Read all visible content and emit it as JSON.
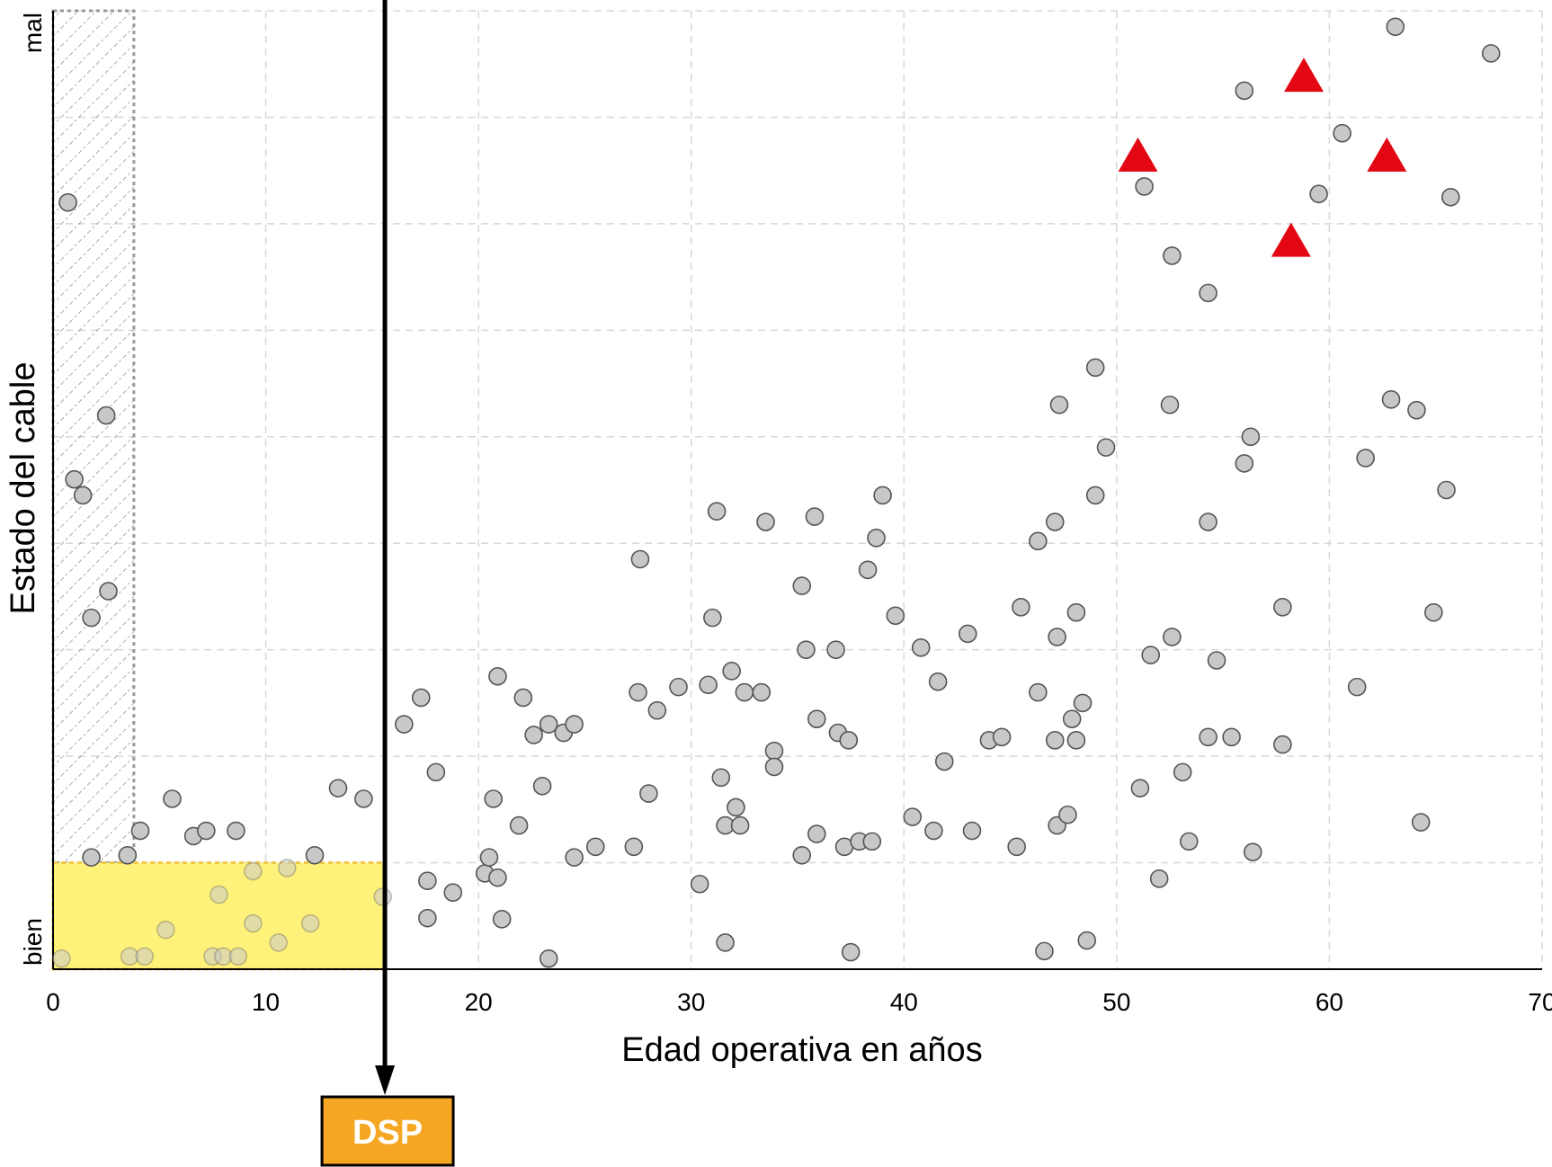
{
  "chart_data": {
    "type": "scatter",
    "title": "",
    "xlabel": "Edad operativa en años",
    "ylabel": "Estado del cable",
    "xlim": [
      0,
      70
    ],
    "ylim": [
      0,
      9
    ],
    "x_ticks": [
      0,
      10,
      20,
      30,
      40,
      50,
      60,
      70
    ],
    "y_tick_labels": {
      "low": "bien",
      "high": "mal"
    },
    "grid": true,
    "colors": {
      "points_fill": "#c8c8c8",
      "points_stroke": "#555555",
      "triangles": "#e30613",
      "highlight_fill": "#fff27a",
      "highlight_border": "#f2c94c",
      "dsp_fill": "#f5a623",
      "dsp_border": "#000000",
      "grid": "#d8d8d8",
      "axis": "#000000"
    },
    "dsp_marker": {
      "label": "DSP",
      "x": 15.6
    },
    "regions": {
      "hatched_region": {
        "x": [
          0,
          3.8
        ],
        "y": [
          1,
          9
        ]
      },
      "highlight_region": {
        "x": [
          0,
          15.6
        ],
        "y": [
          0,
          1
        ]
      }
    },
    "series": [
      {
        "marker": "circle",
        "points": [
          [
            0.7,
            7.2
          ],
          [
            2.5,
            5.2
          ],
          [
            1.0,
            4.6
          ],
          [
            1.4,
            4.45
          ],
          [
            2.6,
            3.55
          ],
          [
            1.8,
            3.3
          ],
          [
            4.1,
            1.3
          ],
          [
            5.6,
            1.6
          ],
          [
            6.6,
            1.25
          ],
          [
            7.2,
            1.3
          ],
          [
            8.6,
            1.3
          ],
          [
            1.8,
            1.05
          ],
          [
            3.5,
            1.07
          ],
          [
            13.4,
            1.7
          ],
          [
            14.6,
            1.6
          ],
          [
            12.3,
            1.07
          ],
          [
            0.4,
            0.1
          ],
          [
            3.6,
            0.12
          ],
          [
            4.3,
            0.12
          ],
          [
            5.3,
            0.37
          ],
          [
            7.5,
            0.12
          ],
          [
            7.8,
            0.7
          ],
          [
            8.0,
            0.12
          ],
          [
            8.7,
            0.12
          ],
          [
            9.4,
            0.92
          ],
          [
            9.4,
            0.43
          ],
          [
            10.6,
            0.25
          ],
          [
            11.0,
            0.95
          ],
          [
            12.1,
            0.43
          ],
          [
            15.5,
            0.68
          ],
          [
            16.5,
            2.3
          ],
          [
            17.3,
            2.55
          ],
          [
            17.6,
            0.83
          ],
          [
            17.6,
            0.48
          ],
          [
            18.0,
            1.85
          ],
          [
            18.8,
            0.72
          ],
          [
            20.3,
            0.9
          ],
          [
            20.5,
            1.05
          ],
          [
            20.7,
            1.6
          ],
          [
            20.9,
            2.75
          ],
          [
            20.9,
            0.86
          ],
          [
            21.1,
            0.47
          ],
          [
            21.9,
            1.35
          ],
          [
            22.1,
            2.55
          ],
          [
            22.6,
            2.2
          ],
          [
            23.0,
            1.72
          ],
          [
            23.3,
            2.3
          ],
          [
            23.3,
            0.1
          ],
          [
            24.0,
            2.22
          ],
          [
            24.5,
            2.3
          ],
          [
            24.5,
            1.05
          ],
          [
            25.5,
            1.15
          ],
          [
            27.3,
            1.15
          ],
          [
            27.5,
            2.6
          ],
          [
            27.6,
            3.85
          ],
          [
            28.0,
            1.65
          ],
          [
            28.4,
            2.43
          ],
          [
            29.4,
            2.65
          ],
          [
            30.4,
            0.8
          ],
          [
            30.8,
            2.67
          ],
          [
            31.0,
            3.3
          ],
          [
            31.2,
            4.3
          ],
          [
            31.4,
            1.8
          ],
          [
            31.6,
            1.35
          ],
          [
            31.6,
            0.25
          ],
          [
            31.9,
            2.8
          ],
          [
            32.1,
            1.52
          ],
          [
            32.3,
            1.35
          ],
          [
            32.5,
            2.6
          ],
          [
            33.3,
            2.6
          ],
          [
            33.5,
            4.2
          ],
          [
            33.9,
            2.05
          ],
          [
            33.9,
            1.9
          ],
          [
            35.2,
            3.6
          ],
          [
            35.2,
            1.07
          ],
          [
            35.4,
            3.0
          ],
          [
            35.8,
            4.25
          ],
          [
            35.9,
            2.35
          ],
          [
            35.9,
            1.27
          ],
          [
            36.9,
            2.22
          ],
          [
            36.8,
            3.0
          ],
          [
            37.2,
            1.15
          ],
          [
            37.4,
            2.15
          ],
          [
            37.5,
            0.16
          ],
          [
            37.9,
            1.2
          ],
          [
            38.3,
            3.75
          ],
          [
            38.5,
            1.2
          ],
          [
            38.7,
            4.05
          ],
          [
            39.0,
            4.45
          ],
          [
            39.6,
            3.32
          ],
          [
            40.4,
            1.43
          ],
          [
            40.8,
            3.02
          ],
          [
            41.4,
            1.3
          ],
          [
            41.6,
            2.7
          ],
          [
            41.9,
            1.95
          ],
          [
            43.0,
            3.15
          ],
          [
            43.2,
            1.3
          ],
          [
            44.0,
            2.15
          ],
          [
            44.6,
            2.18
          ],
          [
            45.3,
            1.15
          ],
          [
            45.5,
            3.4
          ],
          [
            46.3,
            4.02
          ],
          [
            46.3,
            2.6
          ],
          [
            46.6,
            0.17
          ],
          [
            47.1,
            4.2
          ],
          [
            47.1,
            2.15
          ],
          [
            47.2,
            1.35
          ],
          [
            47.2,
            3.12
          ],
          [
            47.3,
            5.3
          ],
          [
            47.7,
            1.45
          ],
          [
            47.9,
            2.35
          ],
          [
            48.1,
            2.15
          ],
          [
            48.1,
            3.35
          ],
          [
            48.4,
            2.5
          ],
          [
            48.6,
            0.27
          ],
          [
            49.0,
            5.65
          ],
          [
            49.0,
            4.45
          ],
          [
            49.5,
            4.9
          ],
          [
            51.1,
            1.7
          ],
          [
            51.3,
            7.35
          ],
          [
            51.6,
            2.95
          ],
          [
            52.0,
            0.85
          ],
          [
            52.5,
            5.3
          ],
          [
            52.6,
            6.7
          ],
          [
            52.6,
            3.12
          ],
          [
            53.1,
            1.85
          ],
          [
            53.4,
            1.2
          ],
          [
            54.3,
            6.35
          ],
          [
            54.3,
            4.2
          ],
          [
            54.3,
            2.18
          ],
          [
            54.7,
            2.9
          ],
          [
            55.4,
            2.18
          ],
          [
            56.0,
            8.25
          ],
          [
            56.0,
            4.75
          ],
          [
            56.3,
            5.0
          ],
          [
            56.4,
            1.1
          ],
          [
            57.8,
            3.4
          ],
          [
            57.8,
            2.11
          ],
          [
            59.5,
            7.28
          ],
          [
            60.6,
            7.85
          ],
          [
            61.3,
            2.65
          ],
          [
            61.7,
            4.8
          ],
          [
            62.9,
            5.35
          ],
          [
            63.1,
            8.85
          ],
          [
            64.1,
            5.25
          ],
          [
            64.3,
            1.38
          ],
          [
            64.9,
            3.35
          ],
          [
            65.5,
            4.5
          ],
          [
            65.7,
            7.25
          ],
          [
            67.6,
            8.6
          ]
        ]
      },
      {
        "marker": "triangle",
        "points": [
          [
            51.0,
            7.65
          ],
          [
            58.8,
            8.4
          ],
          [
            62.7,
            7.65
          ],
          [
            58.2,
            6.85
          ]
        ]
      }
    ]
  }
}
